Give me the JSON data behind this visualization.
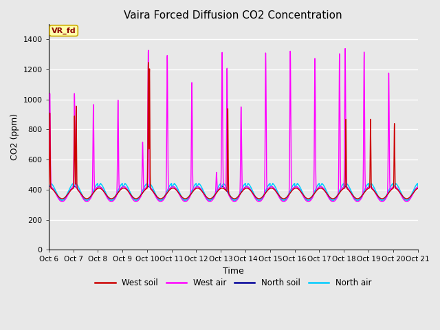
{
  "title": "Vaira Forced Diffusion CO2 Concentration",
  "xlabel": "Time",
  "ylabel": "CO2 (ppm)",
  "ylim": [
    0,
    1500
  ],
  "yticks": [
    0,
    200,
    400,
    600,
    800,
    1000,
    1200,
    1400
  ],
  "plot_bg_color": "#e8e8e8",
  "fig_bg_color": "#e8e8e8",
  "legend_labels": [
    "West soil",
    "West air",
    "North soil",
    "North air"
  ],
  "west_soil_color": "#cc0000",
  "west_air_color": "#ff00ff",
  "north_soil_color": "#000099",
  "north_air_color": "#00ccff",
  "annotation_text": "VR_fd",
  "n_days": 15,
  "start_day": 6,
  "x_tick_labels": [
    "Oct 6",
    "Oct 7",
    "Oct 8",
    "Oct 9",
    "Oct 10",
    "Oct 11",
    "Oct 12",
    "Oct 13",
    "Oct 14",
    "Oct 15",
    "Oct 16",
    "Oct 17",
    "Oct 18",
    "Oct 19",
    "Oct 20",
    "Oct 21"
  ]
}
